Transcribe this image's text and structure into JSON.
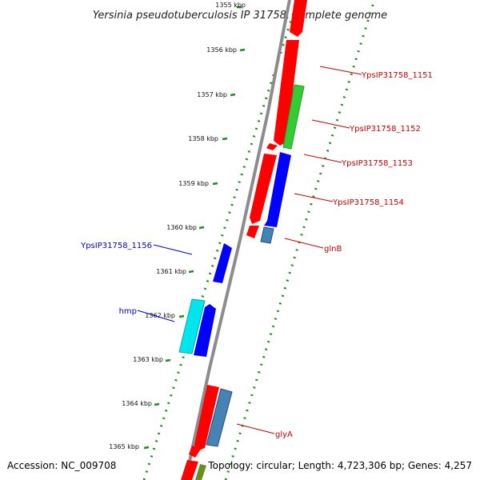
{
  "title": "Yersinia pseudotuberculosis IP 31758, complete genome",
  "footer": {
    "accession": "Accession: NC_009708",
    "summary": "Topology: circular; Length: 4,723,306 bp; Genes: 4,257"
  },
  "ticks": [
    "1355 kbp",
    "1356 kbp",
    "1357 kbp",
    "1358 kbp",
    "1359 kbp",
    "1360 kbp",
    "1361 kbp",
    "1362 kbp",
    "1363 kbp",
    "1364 kbp",
    "1365 kbp"
  ],
  "gene_labels": [
    {
      "text": "YpsIP31758_1151",
      "color": "#cc0000"
    },
    {
      "text": "YpsIP31758_1152",
      "color": "#cc0000"
    },
    {
      "text": "YpsIP31758_1153",
      "color": "#cc0000"
    },
    {
      "text": "YpsIP31758_1154",
      "color": "#cc0000"
    },
    {
      "text": "glnB",
      "color": "#cc0000"
    },
    {
      "text": "glyA",
      "color": "#cc0000"
    },
    {
      "text": "YpsIP31758_1156",
      "color": "#0000cc"
    },
    {
      "text": "hmp",
      "color": "#0000cc"
    }
  ],
  "colors": {
    "forward_cds": "#ff0000",
    "reverse_cds": "#0000ff",
    "rna": "#4682b4",
    "cyan_feature": "#00e5ee",
    "green_feature": "#33cc33",
    "olive_feature": "#6b8e23",
    "backbone": "#8c8c8c",
    "tick_mark": "#228b22"
  }
}
